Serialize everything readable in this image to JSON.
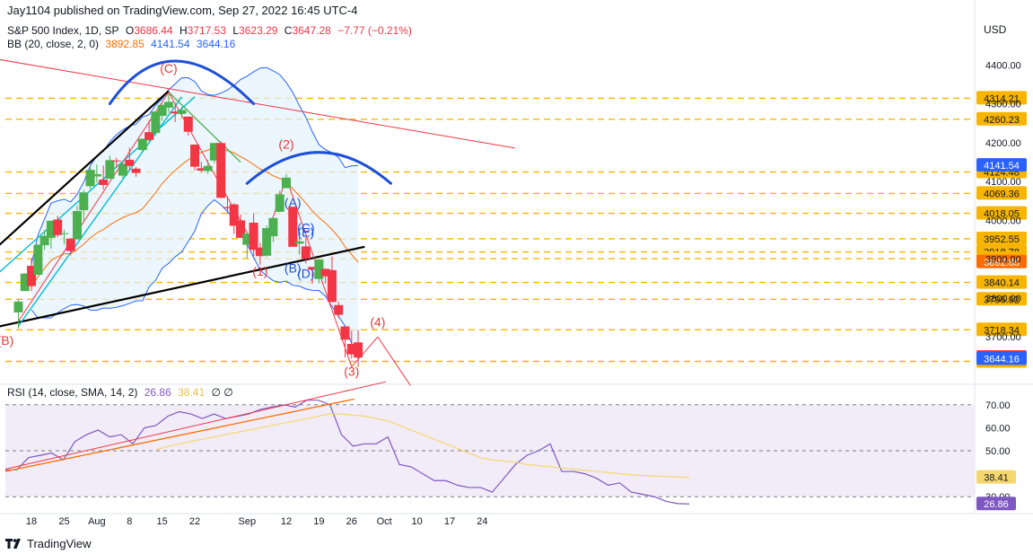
{
  "publisher_line": "Jay1104 published on TradingView.com, Sep 27, 2022 16:45 UTC-4",
  "legend": {
    "symbol": "S&P 500 Index, 1D, SP",
    "o_label": "O",
    "o": "3686.44",
    "h_label": "H",
    "h": "3717.53",
    "l_label": "L",
    "l": "3623.29",
    "c_label": "C",
    "c": "3647.28",
    "change": "−7.77 (−0.21%)",
    "bb_label": "BB (20, close, 2, 0)",
    "bb_basis": "3892.85",
    "bb_upper": "4141.54",
    "bb_lower": "3644.16",
    "rsi_label": "RSI (14, close, SMA, 14, 2)",
    "rsi_value": "26.86",
    "rsi_sma": "38.41",
    "rsi_extra": "∅ ∅"
  },
  "currency": "USD",
  "footer_brand": "TradingView",
  "colors": {
    "up": "#4caf50",
    "down": "#f23645",
    "bb_upper": "#2962ff",
    "bb_basis": "#ff6d00",
    "bb_fill": "#e3f2fd",
    "level": "#f7b500",
    "rsi_line": "#7e57c2",
    "rsi_sma": "#f5d76e",
    "rsi_bg": "#ede7f6",
    "hand_red": "#e53935",
    "hand_blue": "#1e4fd8"
  },
  "chart_data": [
    {
      "type": "candlestick",
      "title": "S&P 500 Index, 1D, SP",
      "x_ticks": [
        "18",
        "25",
        "Aug",
        "8",
        "15",
        "22",
        "Sep",
        "12",
        "19",
        "26",
        "Oct",
        "10",
        "17",
        "24"
      ],
      "y_ticks": [
        3700,
        3800,
        3900,
        4000,
        4100,
        4200,
        4300,
        4400
      ],
      "y_tick_labels": [
        "3700.00",
        "3800.00",
        "3900.00",
        "4000.00",
        "4100.00",
        "4200.00",
        "4300.00",
        "4400.00"
      ],
      "ylim": [
        3600,
        4470
      ],
      "ohlc": [
        {
          "date": "2022-07-14",
          "o": 3763,
          "h": 3796,
          "l": 3722,
          "c": 3791
        },
        {
          "date": "2022-07-15",
          "o": 3818,
          "h": 3864,
          "l": 3818,
          "c": 3863
        },
        {
          "date": "2022-07-18",
          "o": 3883,
          "h": 3902,
          "l": 3818,
          "c": 3831
        },
        {
          "date": "2022-07-19",
          "o": 3860,
          "h": 3939,
          "l": 3860,
          "c": 3937
        },
        {
          "date": "2022-07-20",
          "o": 3936,
          "h": 3975,
          "l": 3924,
          "c": 3960
        },
        {
          "date": "2022-07-21",
          "o": 3955,
          "h": 3999,
          "l": 3927,
          "c": 3999
        },
        {
          "date": "2022-07-22",
          "o": 4002,
          "h": 4012,
          "l": 3956,
          "c": 3962
        },
        {
          "date": "2022-07-25",
          "o": 3966,
          "h": 3976,
          "l": 3938,
          "c": 3967
        },
        {
          "date": "2022-07-26",
          "o": 3953,
          "h": 3954,
          "l": 3910,
          "c": 3921
        },
        {
          "date": "2022-07-27",
          "o": 3951,
          "h": 4038,
          "l": 3951,
          "c": 4024
        },
        {
          "date": "2022-07-28",
          "o": 4026,
          "h": 4078,
          "l": 3999,
          "c": 4072
        },
        {
          "date": "2022-07-29",
          "o": 4088,
          "h": 4140,
          "l": 4080,
          "c": 4130
        },
        {
          "date": "2022-08-01",
          "o": 4113,
          "h": 4144,
          "l": 4097,
          "c": 4119
        },
        {
          "date": "2022-08-02",
          "o": 4105,
          "h": 4141,
          "l": 4080,
          "c": 4091
        },
        {
          "date": "2022-08-03",
          "o": 4107,
          "h": 4167,
          "l": 4107,
          "c": 4155
        },
        {
          "date": "2022-08-04",
          "o": 4154,
          "h": 4161,
          "l": 4135,
          "c": 4152
        },
        {
          "date": "2022-08-05",
          "o": 4115,
          "h": 4151,
          "l": 4107,
          "c": 4145
        },
        {
          "date": "2022-08-08",
          "o": 4156,
          "h": 4187,
          "l": 4128,
          "c": 4140
        },
        {
          "date": "2022-08-09",
          "o": 4133,
          "h": 4137,
          "l": 4112,
          "c": 4122
        },
        {
          "date": "2022-08-10",
          "o": 4181,
          "h": 4211,
          "l": 4177,
          "c": 4210
        },
        {
          "date": "2022-08-11",
          "o": 4227,
          "h": 4257,
          "l": 4201,
          "c": 4207
        },
        {
          "date": "2022-08-12",
          "o": 4225,
          "h": 4280,
          "l": 4219,
          "c": 4280
        },
        {
          "date": "2022-08-15",
          "o": 4269,
          "h": 4301,
          "l": 4256,
          "c": 4297
        },
        {
          "date": "2022-08-16",
          "o": 4290,
          "h": 4325,
          "l": 4277,
          "c": 4305
        },
        {
          "date": "2022-08-17",
          "o": 4280,
          "h": 4302,
          "l": 4253,
          "c": 4275
        },
        {
          "date": "2022-08-18",
          "o": 4274,
          "h": 4292,
          "l": 4264,
          "c": 4284
        },
        {
          "date": "2022-08-19",
          "o": 4267,
          "h": 4267,
          "l": 4218,
          "c": 4228
        },
        {
          "date": "2022-08-22",
          "o": 4195,
          "h": 4195,
          "l": 4129,
          "c": 4138
        },
        {
          "date": "2022-08-23",
          "o": 4134,
          "h": 4150,
          "l": 4123,
          "c": 4128
        },
        {
          "date": "2022-08-24",
          "o": 4127,
          "h": 4156,
          "l": 4119,
          "c": 4140
        },
        {
          "date": "2022-08-25",
          "o": 4154,
          "h": 4200,
          "l": 4147,
          "c": 4199
        },
        {
          "date": "2022-08-26",
          "o": 4199,
          "h": 4203,
          "l": 4057,
          "c": 4058
        },
        {
          "date": "2022-08-29",
          "o": 4034,
          "h": 4062,
          "l": 4017,
          "c": 4031
        },
        {
          "date": "2022-08-30",
          "o": 4041,
          "h": 4044,
          "l": 3965,
          "c": 3986
        },
        {
          "date": "2022-08-31",
          "o": 4000,
          "h": 4015,
          "l": 3954,
          "c": 3955
        },
        {
          "date": "2022-09-01",
          "o": 3937,
          "h": 3970,
          "l": 3903,
          "c": 3966
        },
        {
          "date": "2022-09-02",
          "o": 3994,
          "h": 4018,
          "l": 3906,
          "c": 3924
        },
        {
          "date": "2022-09-06",
          "o": 3930,
          "h": 3942,
          "l": 3886,
          "c": 3908
        },
        {
          "date": "2022-09-07",
          "o": 3909,
          "h": 3987,
          "l": 3906,
          "c": 3980
        },
        {
          "date": "2022-09-08",
          "o": 3959,
          "h": 4010,
          "l": 3944,
          "c": 4006
        },
        {
          "date": "2022-09-09",
          "o": 4022,
          "h": 4076,
          "l": 4022,
          "c": 4067
        },
        {
          "date": "2022-09-12",
          "o": 4083,
          "h": 4119,
          "l": 4083,
          "c": 4110
        },
        {
          "date": "2022-09-13",
          "o": 4035,
          "h": 4035,
          "l": 3933,
          "c": 3932
        },
        {
          "date": "2022-09-14",
          "o": 3940,
          "h": 3961,
          "l": 3912,
          "c": 3946
        },
        {
          "date": "2022-09-15",
          "o": 3933,
          "h": 3957,
          "l": 3889,
          "c": 3901
        },
        {
          "date": "2022-09-16",
          "o": 3880,
          "h": 3880,
          "l": 3837,
          "c": 3873
        },
        {
          "date": "2022-09-19",
          "o": 3849,
          "h": 3900,
          "l": 3838,
          "c": 3899
        },
        {
          "date": "2022-09-20",
          "o": 3875,
          "h": 3877,
          "l": 3837,
          "c": 3856
        },
        {
          "date": "2022-09-21",
          "o": 3872,
          "h": 3907,
          "l": 3789,
          "c": 3790
        },
        {
          "date": "2022-09-22",
          "o": 3782,
          "h": 3791,
          "l": 3749,
          "c": 3757
        },
        {
          "date": "2022-09-23",
          "o": 3727,
          "h": 3727,
          "l": 3647,
          "c": 3693
        },
        {
          "date": "2022-09-26",
          "o": 3682,
          "h": 3716,
          "l": 3644,
          "c": 3655
        },
        {
          "date": "2022-09-27",
          "o": 3686,
          "h": 3718,
          "l": 3623,
          "c": 3647
        }
      ],
      "price_levels": [
        4314.21,
        4260.23,
        4124.48,
        4069.36,
        4018.05,
        3952.55,
        3918.78,
        3901.49,
        3840.14,
        3796.92,
        3718.34,
        3637.01
      ],
      "price_level_labels": [
        "4314.21",
        "4260.23",
        "4124.48",
        "4069.36",
        "4018.05",
        "3952.55",
        "3918.78",
        "3901.49",
        "3840.14",
        "3796.92",
        "3718.34",
        "3637.01"
      ],
      "axis_tags": [
        {
          "text": "4141.54",
          "value": 4141.54,
          "color": "#2962ff"
        },
        {
          "text": "3892.85",
          "value": 3892.85,
          "color": "#ff6d00"
        },
        {
          "text": "3647.28",
          "value": 3647.28,
          "color": "#f23645"
        },
        {
          "text": "3644.16",
          "value": 3644.16,
          "color": "#2962ff"
        }
      ],
      "annotations": [
        {
          "text": "(C)",
          "date": "2022-08-16",
          "y": 4380,
          "color": "#e53935"
        },
        {
          "text": "(2)",
          "date": "2022-09-12",
          "y": 4185,
          "color": "#e53935"
        },
        {
          "text": "(1)",
          "date": "2022-09-06",
          "y": 3858,
          "color": "#e53935"
        },
        {
          "text": "(A)",
          "date": "2022-09-13",
          "y": 4035,
          "color": "#1e4fd8"
        },
        {
          "text": "(C)",
          "date": "2022-09-15",
          "y": 3970,
          "color": "#1e4fd8"
        },
        {
          "text": "(E)",
          "date": "2022-09-15",
          "y": 3958,
          "color": "#1e4fd8"
        },
        {
          "text": "(B)",
          "date": "2022-09-13",
          "y": 3866,
          "color": "#1e4fd8"
        },
        {
          "text": "(D)",
          "date": "2022-09-15",
          "y": 3852,
          "color": "#1e4fd8"
        },
        {
          "text": "(B)",
          "date": "2022-07-13",
          "y": 3680,
          "color": "#e53935"
        },
        {
          "text": "(4)",
          "date": "2022-10-01",
          "y": 3727,
          "color": "#e53935"
        },
        {
          "text": "(3)",
          "date": "2022-09-26",
          "y": 3600,
          "color": "#e53935"
        }
      ]
    },
    {
      "type": "line",
      "title": "RSI (14, close, SMA, 14, 2)",
      "y_ticks": [
        20,
        30,
        40,
        50,
        60,
        70
      ],
      "y_tick_labels": [
        "",
        "30.00",
        "",
        "50.00",
        "60.00",
        "70.00"
      ],
      "ylim": [
        25,
        75
      ],
      "bands": [
        70,
        50,
        30
      ],
      "series": [
        {
          "key": "rsi",
          "values": [
            41.5,
            41.8,
            47,
            48,
            49,
            46,
            54,
            57,
            59,
            56,
            57,
            53,
            60,
            61,
            65,
            67,
            66,
            64,
            66,
            64,
            65,
            66,
            68,
            69,
            70,
            69,
            72,
            72,
            70,
            57,
            52,
            53,
            53,
            56,
            44,
            43,
            40,
            37,
            37,
            35,
            34,
            34,
            32,
            38,
            44,
            48,
            50,
            53,
            41,
            41,
            40,
            38,
            35,
            36,
            32,
            31,
            30,
            28,
            27,
            26.86
          ]
        },
        {
          "key": "sma",
          "values": [
            null,
            null,
            null,
            null,
            null,
            null,
            null,
            null,
            null,
            null,
            null,
            null,
            null,
            50.5,
            51.8,
            53,
            54,
            55,
            56,
            57,
            58,
            59,
            60,
            61,
            62,
            63,
            64,
            65,
            66,
            66,
            65.5,
            65,
            64,
            63,
            61,
            59,
            57,
            55,
            53,
            51,
            49,
            47,
            46,
            45.5,
            45,
            44,
            43.5,
            43,
            42.5,
            42,
            41.5,
            41,
            40.5,
            40,
            39.5,
            39.2,
            39,
            38.8,
            38.6,
            38.41
          ]
        }
      ]
    }
  ]
}
